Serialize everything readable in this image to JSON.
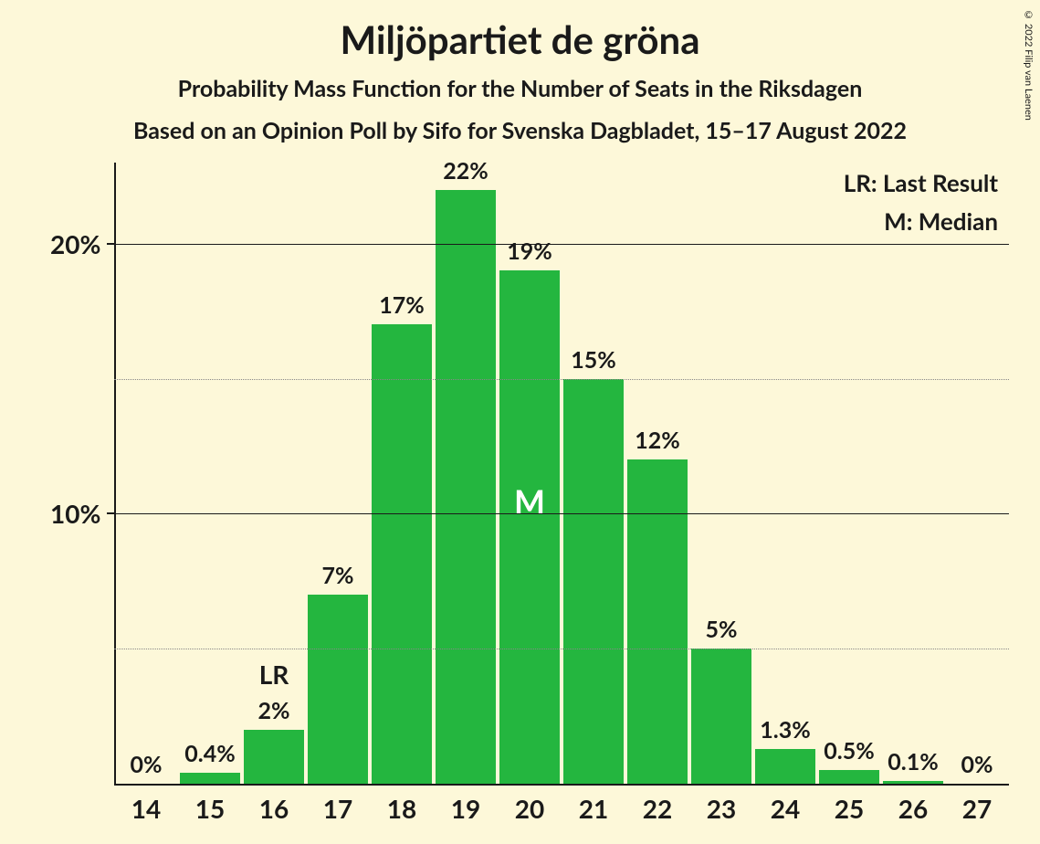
{
  "copyright": "© 2022 Filip van Laenen",
  "title": "Miljöpartiet de gröna",
  "subtitle": "Probability Mass Function for the Number of Seats in the Riksdagen",
  "subtitle2": "Based on an Opinion Poll by Sifo for Svenska Dagbladet, 15–17 August 2022",
  "legend": {
    "lr": "LR: Last Result",
    "m": "M: Median"
  },
  "chart": {
    "type": "bar",
    "background_color": "#fdf8d9",
    "bar_color": "#24b63f",
    "text_color": "#1a1a1a",
    "median_text_color": "#ffffff",
    "grid_major_color": "#1a1a1a",
    "grid_minor_color": "#888888",
    "title_fontsize": 42,
    "subtitle_fontsize": 25,
    "axis_label_fontsize": 28,
    "bar_label_fontsize": 25,
    "ylim": [
      0,
      23
    ],
    "y_major_ticks": [
      10,
      20
    ],
    "y_minor_ticks": [
      5,
      15
    ],
    "y_tick_labels": {
      "10": "10%",
      "20": "20%"
    },
    "categories": [
      14,
      15,
      16,
      17,
      18,
      19,
      20,
      21,
      22,
      23,
      24,
      25,
      26,
      27
    ],
    "values": [
      0,
      0.4,
      2,
      7,
      17,
      22,
      19,
      15,
      12,
      5,
      1.3,
      0.5,
      0.1,
      0
    ],
    "bar_labels": [
      "0%",
      "0.4%",
      "2%",
      "7%",
      "17%",
      "22%",
      "19%",
      "15%",
      "12%",
      "5%",
      "1.3%",
      "0.5%",
      "0.1%",
      "0%"
    ],
    "median_index": 6,
    "median_label": "M",
    "lr_index": 2,
    "lr_label": "LR",
    "bar_width_ratio": 0.94
  }
}
